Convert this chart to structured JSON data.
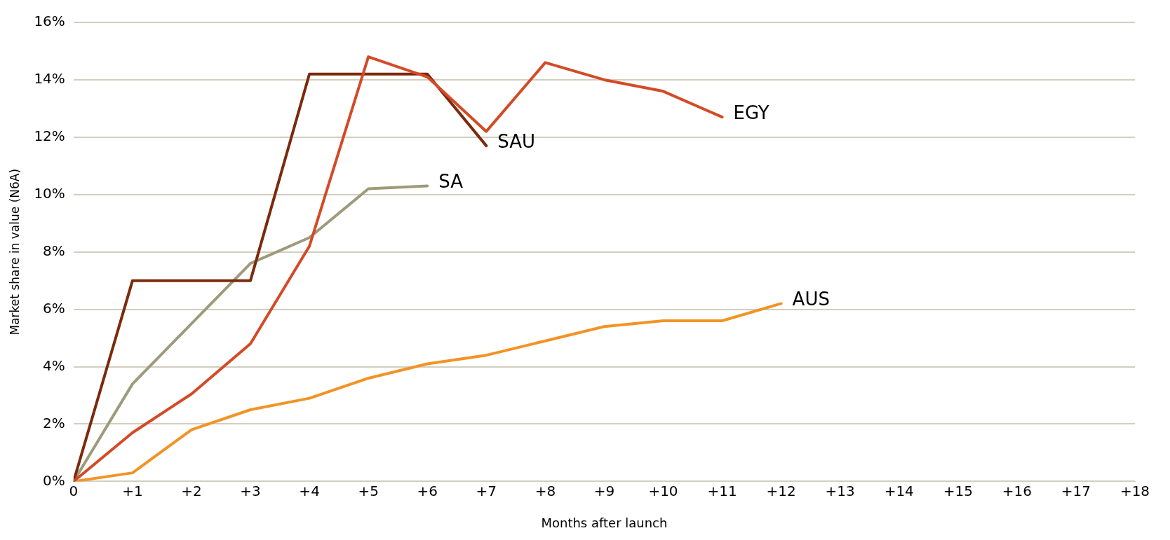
{
  "chart_data": {
    "type": "line",
    "xlabel": "Months after launch",
    "ylabel": "Market share in value (N6A)",
    "xlim": [
      0,
      18
    ],
    "xticks": [
      0,
      {
        "value": 1,
        "label": "+1"
      },
      {
        "value": 2,
        "label": "+2"
      },
      {
        "value": 3,
        "label": "+3"
      },
      {
        "value": 4,
        "label": "+4"
      },
      {
        "value": 5,
        "label": "+5"
      },
      {
        "value": 6,
        "label": "+6"
      },
      {
        "value": 7,
        "label": "+7"
      },
      {
        "value": 8,
        "label": "+8"
      },
      {
        "value": 9,
        "label": "+9"
      },
      {
        "value": 10,
        "label": "+10"
      },
      {
        "value": 11,
        "label": "+11"
      },
      {
        "value": 12,
        "label": "+12"
      },
      {
        "value": 13,
        "label": "+13"
      },
      {
        "value": 14,
        "label": "+14"
      },
      {
        "value": 15,
        "label": "+15"
      },
      {
        "value": 16,
        "label": "+16"
      },
      {
        "value": 17,
        "label": "+17"
      },
      {
        "value": 18,
        "label": "+18"
      }
    ],
    "ylim": [
      0,
      16
    ],
    "yticks": [
      {
        "value": 0,
        "label": "0%"
      },
      {
        "value": 2,
        "label": "2%"
      },
      {
        "value": 4,
        "label": "4%"
      },
      {
        "value": 6,
        "label": "6%"
      },
      {
        "value": 8,
        "label": "8%"
      },
      {
        "value": 10,
        "label": "10%"
      },
      {
        "value": 12,
        "label": "12%"
      },
      {
        "value": 14,
        "label": "14%"
      },
      {
        "value": 16,
        "label": "16%"
      }
    ],
    "grid": "y",
    "legend": false,
    "marker": "none",
    "line_style": "solid",
    "series": [
      {
        "name": "EGY",
        "color": "#d44a26",
        "x": [
          0,
          1,
          2,
          3,
          4,
          5,
          6,
          7,
          8,
          9,
          10,
          11
        ],
        "values": [
          0,
          1.7,
          3.05,
          4.8,
          8.2,
          14.8,
          14.1,
          12.2,
          14.6,
          14.0,
          13.6,
          12.7
        ]
      },
      {
        "name": "SAU",
        "color": "#7b2a0d",
        "x": [
          0,
          1,
          2,
          3,
          4,
          5,
          6,
          7
        ],
        "values": [
          0,
          7.0,
          7.0,
          7.0,
          14.2,
          14.2,
          14.2,
          11.7
        ]
      },
      {
        "name": "SA",
        "color": "#9e9a7a",
        "x": [
          0,
          1,
          2,
          3,
          4,
          5,
          6
        ],
        "values": [
          0,
          3.4,
          5.5,
          7.6,
          8.5,
          10.2,
          10.3
        ]
      },
      {
        "name": "AUS",
        "color": "#f39325",
        "x": [
          0,
          1,
          2,
          3,
          4,
          5,
          6,
          7,
          8,
          9,
          10,
          11,
          12
        ],
        "values": [
          0,
          0.3,
          1.8,
          2.5,
          2.9,
          3.6,
          4.1,
          4.4,
          4.9,
          5.4,
          5.6,
          5.6,
          6.2
        ]
      }
    ]
  }
}
